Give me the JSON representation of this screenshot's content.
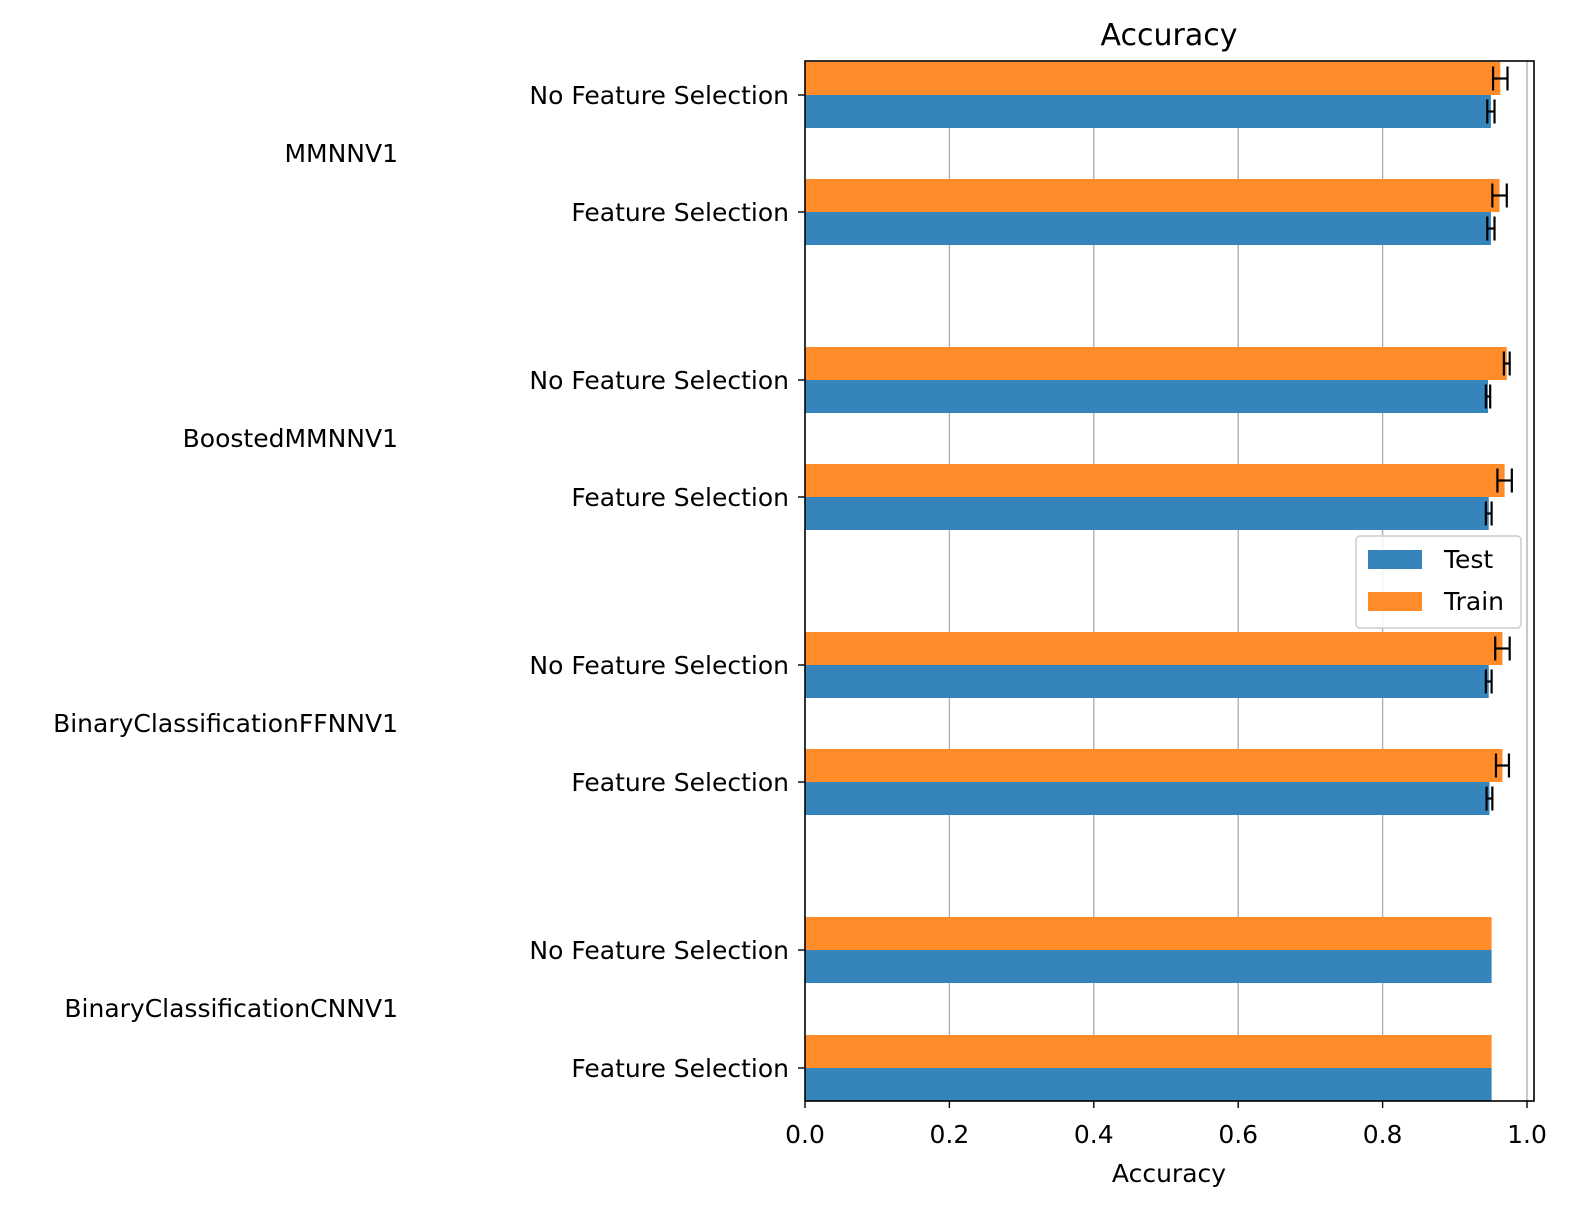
{
  "chart_data": {
    "type": "bar",
    "orientation": "horizontal",
    "title": "Accuracy",
    "xlabel": "Accuracy",
    "ylabel": "",
    "xlim": [
      0,
      1.0
    ],
    "xticks": [
      "0.0",
      "0.2",
      "0.4",
      "0.6",
      "0.8",
      "1.0"
    ],
    "grid": "x",
    "legend": {
      "placement": "center-right",
      "entries": [
        "Test",
        "Train"
      ]
    },
    "colors": {
      "Test": "#3584bb",
      "Train": "#ff8c28"
    },
    "groups": [
      {
        "name": "MMNNV1",
        "rows": [
          {
            "label": "No Feature Selection",
            "test": 0.95,
            "test_err": 0.005,
            "train": 0.963,
            "train_err": 0.01
          },
          {
            "label": "Feature Selection",
            "test": 0.95,
            "test_err": 0.005,
            "train": 0.962,
            "train_err": 0.01
          }
        ]
      },
      {
        "name": "BoostedMMNNV1",
        "rows": [
          {
            "label": "No Feature Selection",
            "test": 0.946,
            "test_err": 0.003,
            "train": 0.972,
            "train_err": 0.004
          },
          {
            "label": "Feature Selection",
            "test": 0.947,
            "test_err": 0.004,
            "train": 0.969,
            "train_err": 0.01
          }
        ]
      },
      {
        "name": "BinaryClassificationFFNNV1",
        "rows": [
          {
            "label": "No Feature Selection",
            "test": 0.947,
            "test_err": 0.004,
            "train": 0.966,
            "train_err": 0.01
          },
          {
            "label": "Feature Selection",
            "test": 0.948,
            "test_err": 0.004,
            "train": 0.966,
            "train_err": 0.009
          }
        ]
      },
      {
        "name": "BinaryClassificationCNNV1",
        "rows": [
          {
            "label": "No Feature Selection",
            "test": 0.951,
            "test_err": 0,
            "train": 0.951,
            "train_err": 0
          },
          {
            "label": "Feature Selection",
            "test": 0.951,
            "test_err": 0,
            "train": 0.951,
            "train_err": 0
          }
        ]
      }
    ]
  }
}
